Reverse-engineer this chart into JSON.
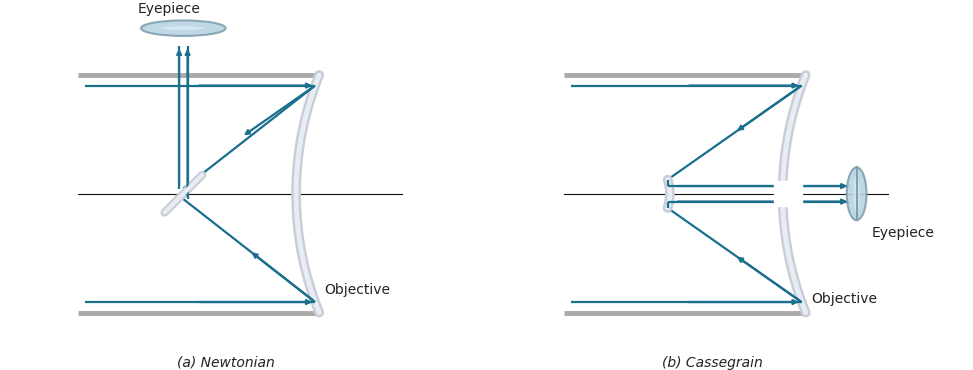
{
  "fig_width": 9.73,
  "fig_height": 3.7,
  "dpi": 100,
  "bg_color": "#ffffff",
  "ray_color": "#1a6e8e",
  "mirror_fill": "#c8cdd8",
  "mirror_edge": "#9aa0b0",
  "mirror_light": "#e8edf5",
  "axis_color": "#111111",
  "tube_color": "#aaaaaa",
  "lens_fill": "#b8d4e0",
  "lens_edge": "#80a0b0",
  "label_color": "#222222",
  "label_a": "(a) Newtonian",
  "label_b": "(b) Cassegrain",
  "label_objective": "Objective",
  "label_eyepiece": "Eyepiece",
  "label_fontsize": 10
}
